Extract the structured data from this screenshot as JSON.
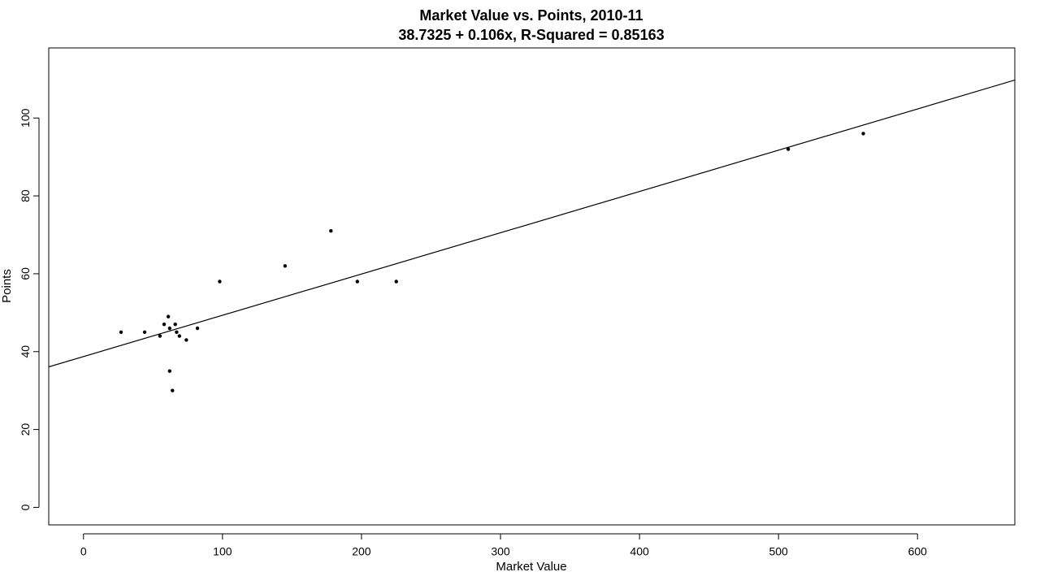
{
  "chart_data": {
    "type": "scatter",
    "title": "Market Value vs. Points, 2010-11",
    "subtitle": "38.7325 + 0.106x, R-Squared = 0.85163",
    "xlabel": "Market Value",
    "ylabel": "Points",
    "xlim": [
      -25,
      670
    ],
    "ylim": [
      -4.5,
      118
    ],
    "x_ticks": [
      0,
      100,
      200,
      300,
      400,
      500,
      600
    ],
    "y_ticks": [
      0,
      20,
      40,
      60,
      80,
      100
    ],
    "grid": false,
    "regression": {
      "intercept": 38.7325,
      "slope": 0.106
    },
    "series": [
      {
        "points": [
          [
            27,
            45
          ],
          [
            44,
            45
          ],
          [
            55,
            44
          ],
          [
            58,
            47
          ],
          [
            61,
            49
          ],
          [
            62,
            35
          ],
          [
            62,
            46
          ],
          [
            64,
            30
          ],
          [
            66,
            47
          ],
          [
            67,
            45
          ],
          [
            69,
            44
          ],
          [
            74,
            43
          ],
          [
            82,
            46
          ],
          [
            98,
            58
          ],
          [
            145,
            62
          ],
          [
            178,
            71
          ],
          [
            197,
            58
          ],
          [
            225,
            58
          ],
          [
            507,
            92
          ],
          [
            561,
            96
          ]
        ]
      }
    ]
  }
}
